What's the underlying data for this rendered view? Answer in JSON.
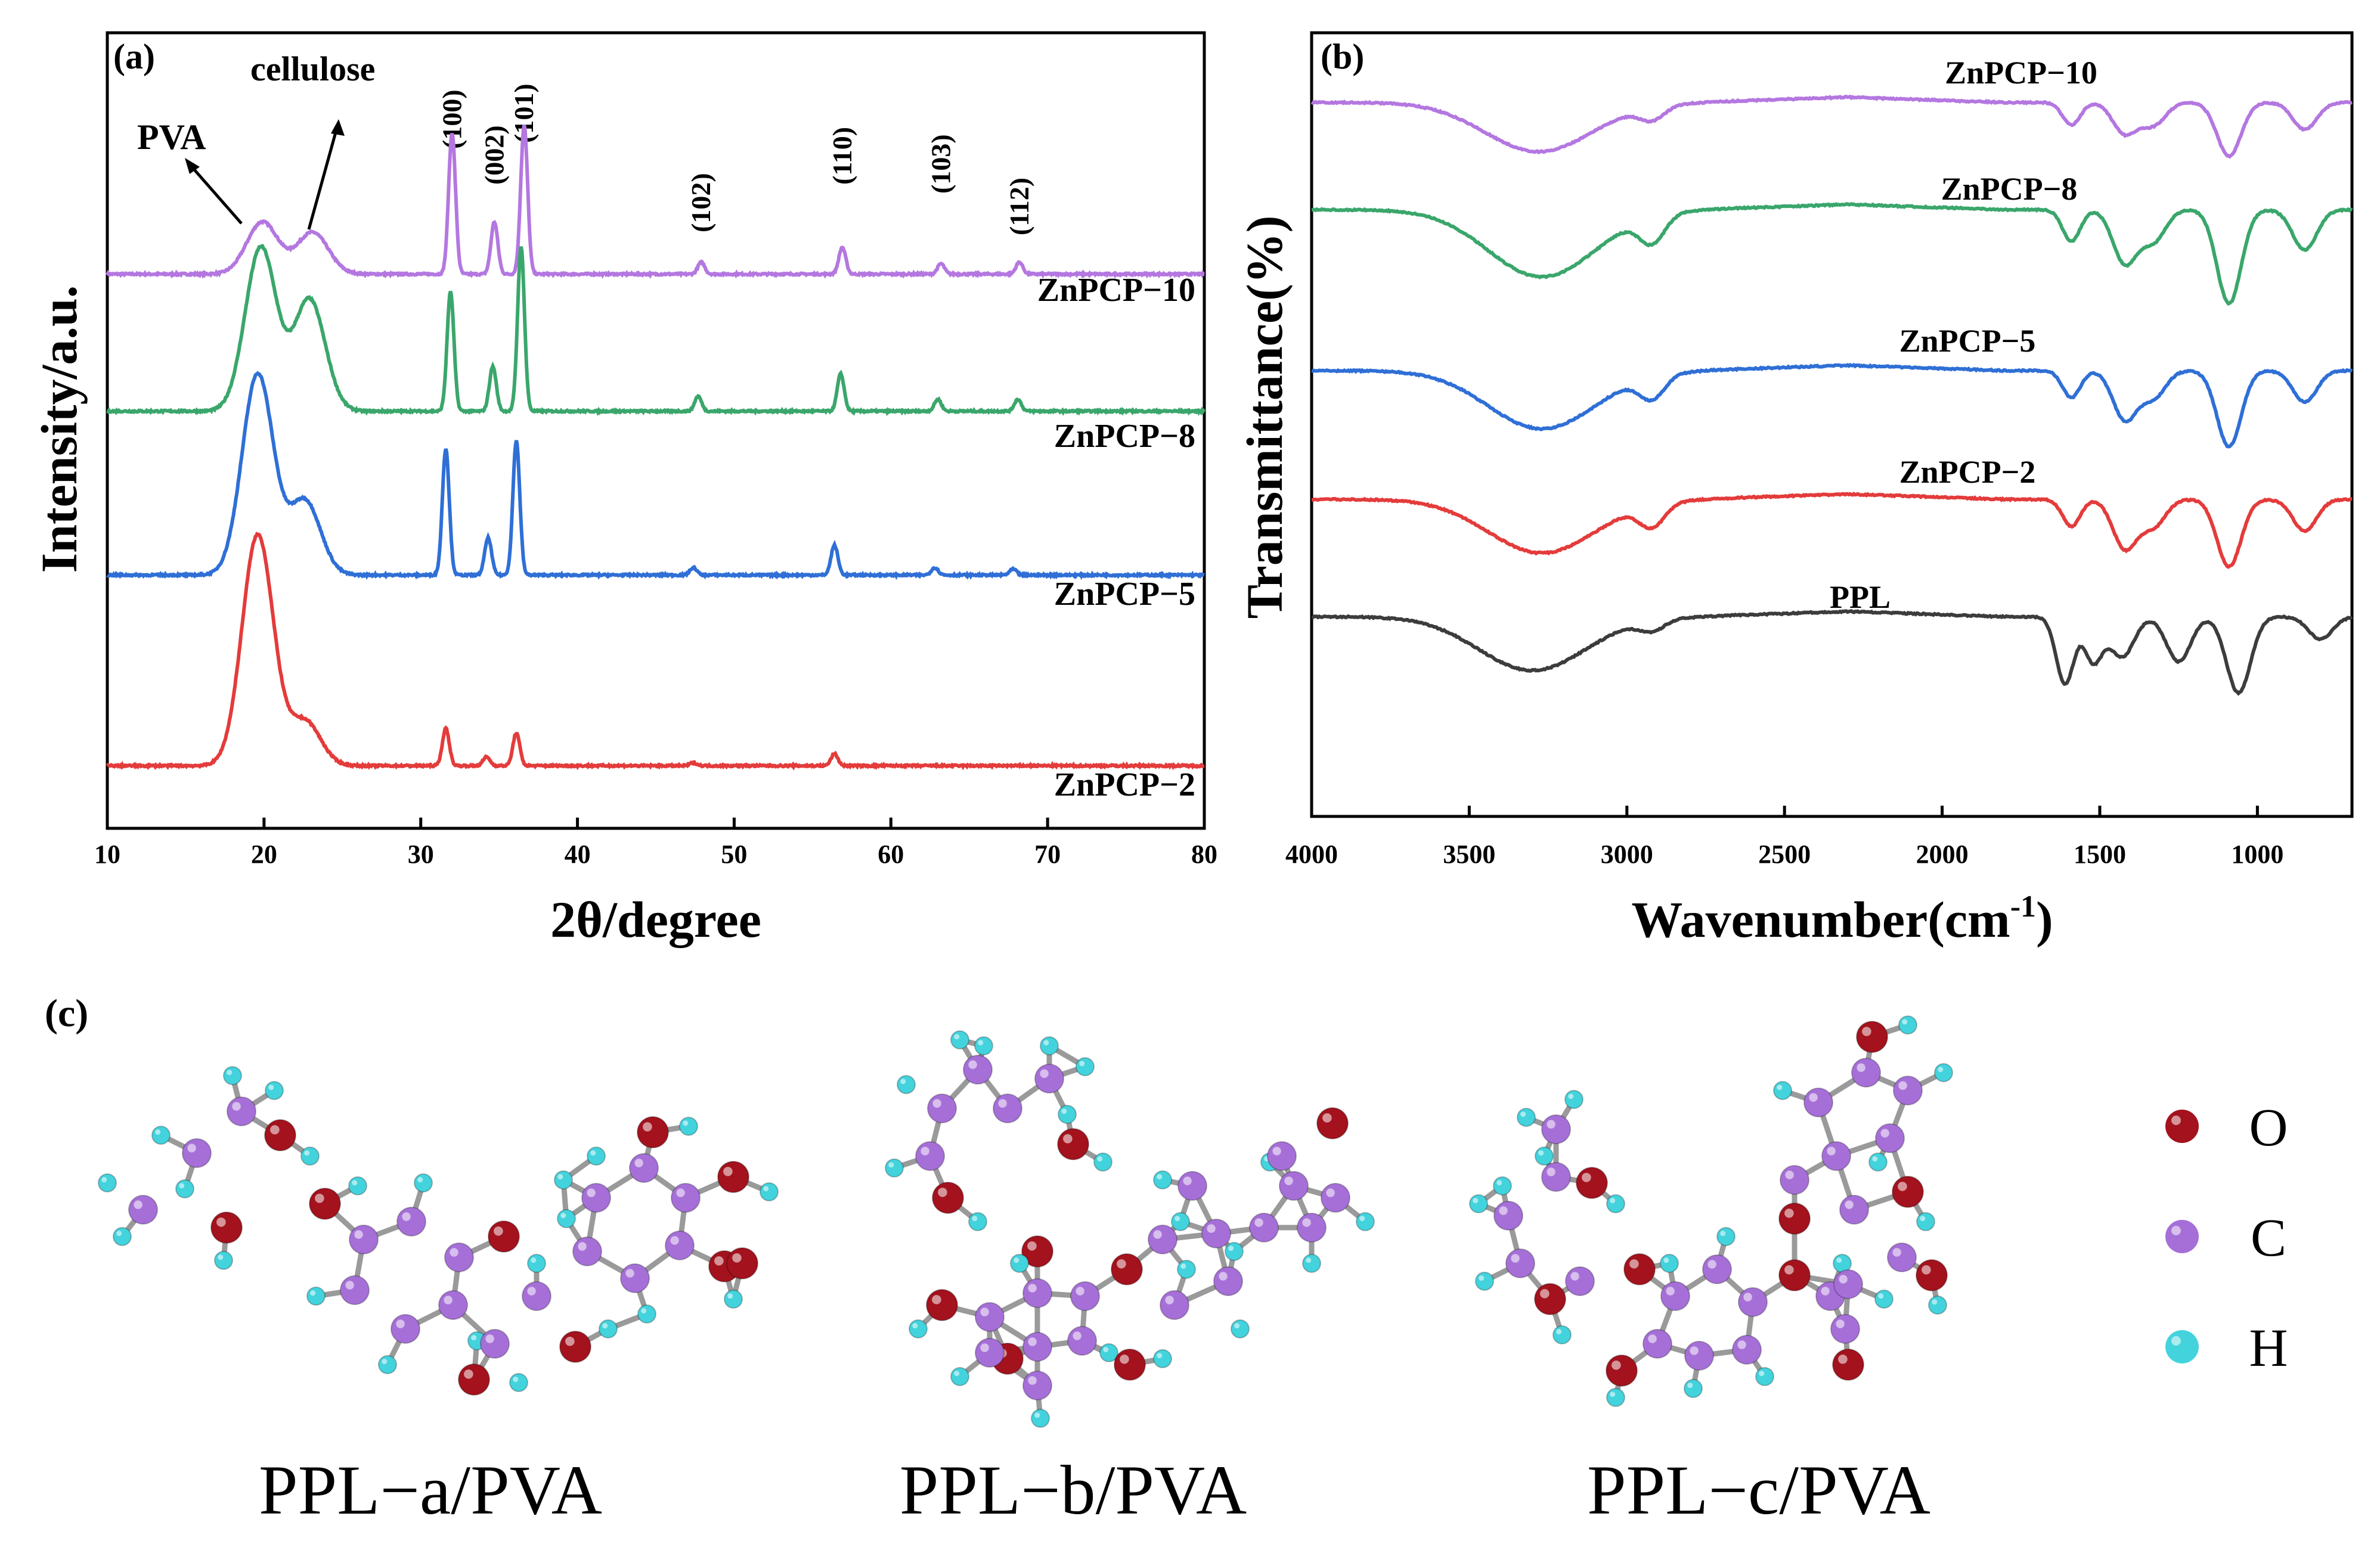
{
  "chart_data": [
    {
      "panel": "(a)",
      "type": "line",
      "xlabel": "2θ/degree",
      "ylabel": "Intensity/a.u.",
      "xlim": [
        10,
        80
      ],
      "xticks": [
        10,
        20,
        30,
        40,
        50,
        60,
        70,
        80
      ],
      "annotations": {
        "pva": "PVA",
        "cellulose": "cellulose",
        "planes": [
          {
            "label": "(100)",
            "x": 32.0
          },
          {
            "label": "(002)",
            "x": 34.7
          },
          {
            "label": "(101)",
            "x": 36.6
          },
          {
            "label": "(102)",
            "x": 47.9
          },
          {
            "label": "(110)",
            "x": 56.9
          },
          {
            "label": "(103)",
            "x": 63.2
          },
          {
            "label": "(112)",
            "x": 68.2
          }
        ]
      },
      "series": [
        {
          "name": "ZnPCP−10",
          "color": "#b477e0",
          "peaks": [
            [
              19.9,
              0.35
            ],
            [
              23.1,
              0.28
            ],
            [
              32.0,
              0.95
            ],
            [
              34.7,
              0.35
            ],
            [
              36.6,
              1.0
            ],
            [
              47.9,
              0.08
            ],
            [
              56.9,
              0.18
            ],
            [
              63.2,
              0.07
            ],
            [
              68.2,
              0.08
            ]
          ]
        },
        {
          "name": "ZnPCP−8",
          "color": "#3aa66b",
          "peaks": [
            [
              19.8,
              1.1
            ],
            [
              22.9,
              0.75
            ],
            [
              31.9,
              0.8
            ],
            [
              34.6,
              0.3
            ],
            [
              36.4,
              1.1
            ],
            [
              47.7,
              0.1
            ],
            [
              56.8,
              0.25
            ],
            [
              63.0,
              0.08
            ],
            [
              68.1,
              0.08
            ]
          ]
        },
        {
          "name": "ZnPCP−5",
          "color": "#2f6fd6",
          "peaks": [
            [
              19.6,
              1.35
            ],
            [
              22.6,
              0.5
            ],
            [
              31.6,
              0.85
            ],
            [
              34.3,
              0.25
            ],
            [
              36.1,
              0.9
            ],
            [
              47.4,
              0.05
            ],
            [
              56.4,
              0.2
            ],
            [
              62.8,
              0.05
            ],
            [
              67.8,
              0.04
            ]
          ]
        },
        {
          "name": "ZnPCP−2",
          "color": "#e43b3b",
          "peaks": [
            [
              19.6,
              1.55
            ],
            [
              22.6,
              0.3
            ],
            [
              31.6,
              0.25
            ],
            [
              34.2,
              0.06
            ],
            [
              36.1,
              0.22
            ],
            [
              47.4,
              0.02
            ],
            [
              56.4,
              0.08
            ]
          ]
        }
      ]
    },
    {
      "panel": "(b)",
      "type": "line",
      "xlabel": "Wavenumber(cm",
      "xlabel_sup": "-1",
      "xlabel_end": ")",
      "ylabel": "Transmittance(%)",
      "xlim": [
        4000,
        700
      ],
      "xticks": [
        4000,
        3500,
        3000,
        2500,
        2000,
        1500,
        1000
      ],
      "series": [
        {
          "name": "ZnPCP−10",
          "color": "#b477e0",
          "bands": [
            [
              3280,
              0.55
            ],
            [
              2920,
              0.15
            ],
            [
              1590,
              0.25
            ],
            [
              1420,
              0.35
            ],
            [
              1330,
              0.25
            ],
            [
              1090,
              0.6
            ],
            [
              850,
              0.3
            ]
          ]
        },
        {
          "name": "ZnPCP−8",
          "color": "#3aa66b",
          "bands": [
            [
              3270,
              0.75
            ],
            [
              2920,
              0.3
            ],
            [
              1590,
              0.35
            ],
            [
              1420,
              0.6
            ],
            [
              1330,
              0.35
            ],
            [
              1090,
              1.05
            ],
            [
              850,
              0.45
            ]
          ]
        },
        {
          "name": "ZnPCP−5",
          "color": "#2f6fd6",
          "bands": [
            [
              3270,
              0.65
            ],
            [
              2920,
              0.25
            ],
            [
              1590,
              0.3
            ],
            [
              1420,
              0.55
            ],
            [
              1330,
              0.3
            ],
            [
              1090,
              0.85
            ],
            [
              850,
              0.35
            ]
          ]
        },
        {
          "name": "ZnPCP−2",
          "color": "#e43b3b",
          "bands": [
            [
              3270,
              0.6
            ],
            [
              2920,
              0.25
            ],
            [
              1590,
              0.3
            ],
            [
              1420,
              0.55
            ],
            [
              1330,
              0.3
            ],
            [
              1090,
              0.75
            ],
            [
              850,
              0.35
            ]
          ]
        },
        {
          "name": "PPL",
          "color": "#3c3c3c",
          "bands": [
            [
              3300,
              0.6
            ],
            [
              2920,
              0.12
            ],
            [
              1610,
              0.75
            ],
            [
              1520,
              0.5
            ],
            [
              1430,
              0.45
            ],
            [
              1250,
              0.5
            ],
            [
              1060,
              0.85
            ],
            [
              800,
              0.25
            ]
          ]
        }
      ]
    }
  ],
  "panel_c": {
    "label": "(c)",
    "captions": [
      "PPL−a/PVA",
      "PPL−b/PVA",
      "PPL−c/PVA"
    ],
    "legend": [
      {
        "symbol": "O",
        "color": "#a3121d"
      },
      {
        "symbol": "C",
        "color": "#a66fd8"
      },
      {
        "symbol": "H",
        "color": "#43d3dd"
      }
    ]
  }
}
